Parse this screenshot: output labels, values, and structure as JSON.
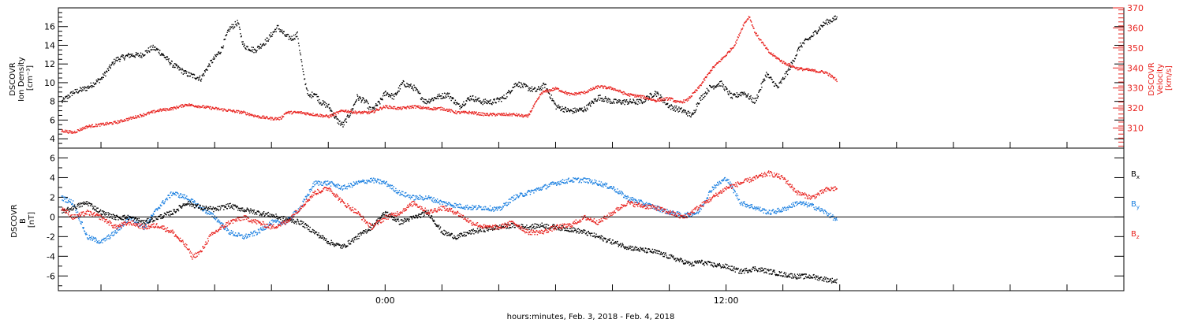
{
  "colors": {
    "black": "#000000",
    "red": "#e8221e",
    "blue": "#1a7fe0"
  },
  "chart_data": [
    {
      "type": "scatter",
      "panel": "top",
      "xlabel": "hours:minutes, Feb. 3, 2018 - Feb. 4, 2018",
      "x_range_hours_rel_feb4_0000": [
        -11.5,
        26.0
      ],
      "x_tick_labels": [
        "0:00",
        "12:00"
      ],
      "left_axis": {
        "label_lines": [
          "DSCOVR",
          "Ion Density",
          "[cm⁻³]"
        ],
        "ylim": [
          3,
          18
        ],
        "ticks": [
          4,
          6,
          8,
          10,
          12,
          14,
          16
        ],
        "tick_labels": [
          "4",
          "6",
          "8",
          "10",
          "12",
          "14",
          "16"
        ]
      },
      "right_axis": {
        "label_lines": [
          "DSCOVR",
          "Velocity",
          "[km/s]"
        ],
        "ylim": [
          300,
          370
        ],
        "ticks": [
          310,
          320,
          330,
          340,
          350,
          360,
          370
        ],
        "tick_labels": [
          "310",
          "320",
          "330",
          "340",
          "350",
          "360",
          "370"
        ],
        "color": "#e8221e"
      },
      "series": [
        {
          "color": "black",
          "axis": "left",
          "x": [
            -11.4,
            -11.0,
            -10.5,
            -10.0,
            -9.5,
            -9.0,
            -8.6,
            -8.2,
            -8.0,
            -7.5,
            -7.0,
            -6.5,
            -6.2,
            -5.8,
            -5.5,
            -5.2,
            -5.0,
            -4.6,
            -4.2,
            -3.8,
            -3.5,
            -3.3,
            -3.1,
            -2.9,
            -2.7,
            -2.5,
            -2.3,
            -2.0,
            -1.7,
            -1.5,
            -1.2,
            -1.0,
            -0.7,
            -0.5,
            -0.2,
            0.0,
            0.3,
            0.6,
            1.0,
            1.4,
            1.8,
            2.2,
            2.6,
            3.0,
            3.4,
            3.8,
            4.2,
            4.6,
            5.0,
            5.3,
            5.6,
            6.0,
            6.5,
            7.0,
            7.5,
            8.0,
            8.5,
            9.0,
            9.5,
            10.0,
            10.5,
            10.8,
            11.0,
            11.4,
            11.8,
            12.2,
            12.6,
            13.0,
            13.4,
            13.8,
            14.2,
            14.6,
            15.0,
            15.3,
            15.5,
            15.9
          ],
          "y": [
            8.0,
            9.0,
            9.5,
            10.5,
            12.5,
            13.0,
            13.0,
            13.8,
            13.5,
            12.0,
            11.0,
            10.5,
            12.0,
            13.5,
            15.8,
            16.5,
            14.0,
            13.5,
            14.5,
            16.0,
            15.0,
            14.8,
            15.2,
            11.0,
            8.5,
            9.0,
            8.0,
            7.5,
            6.0,
            5.5,
            7.0,
            8.5,
            8.0,
            7.0,
            8.0,
            9.0,
            8.5,
            10.0,
            9.5,
            8.0,
            8.5,
            8.8,
            7.5,
            8.5,
            8.0,
            8.0,
            8.5,
            10.0,
            9.5,
            9.2,
            9.8,
            7.5,
            7.0,
            7.2,
            8.5,
            8.0,
            8.0,
            8.0,
            9.0,
            7.5,
            7.0,
            6.5,
            8.0,
            9.5,
            10.0,
            8.5,
            9.0,
            8.0,
            11.0,
            9.5,
            11.5,
            14.0,
            15.0,
            16.0,
            16.5,
            17.0
          ]
        },
        {
          "color": "red",
          "axis": "right",
          "x": [
            -11.4,
            -11.0,
            -10.5,
            -10.0,
            -9.5,
            -9.0,
            -8.5,
            -8.0,
            -7.5,
            -7.0,
            -6.5,
            -6.0,
            -5.5,
            -5.0,
            -4.5,
            -4.0,
            -3.7,
            -3.5,
            -3.0,
            -2.5,
            -2.0,
            -1.5,
            -1.0,
            -0.5,
            -0.2,
            0.0,
            0.5,
            1.0,
            1.5,
            2.0,
            2.5,
            3.0,
            3.5,
            4.0,
            4.5,
            5.0,
            5.5,
            6.0,
            6.5,
            7.0,
            7.5,
            8.0,
            8.5,
            9.0,
            9.5,
            10.0,
            10.3,
            10.6,
            11.0,
            11.5,
            12.0,
            12.3,
            12.6,
            12.8,
            13.0,
            13.3,
            13.5,
            14.0,
            14.5,
            15.0,
            15.5,
            15.9
          ],
          "y": [
            309,
            308,
            311,
            312,
            313,
            315,
            317,
            319,
            320,
            322,
            321,
            320,
            319,
            318,
            316,
            315,
            315,
            318,
            318,
            317,
            316,
            319,
            318,
            318,
            320,
            321,
            320,
            321,
            320,
            320,
            318,
            318,
            317,
            317,
            317,
            316,
            328,
            330,
            327,
            328,
            331,
            330,
            327,
            326,
            324,
            325,
            323,
            324,
            330,
            340,
            347,
            352,
            362,
            366,
            358,
            352,
            348,
            343,
            340,
            339,
            338,
            334
          ]
        }
      ]
    },
    {
      "type": "scatter",
      "panel": "bottom",
      "xlabel": "hours:minutes, Feb. 3, 2018 - Feb. 4, 2018",
      "x_tick_labels": [
        "0:00",
        "12:00"
      ],
      "left_axis": {
        "label_lines": [
          "DSCOVR",
          "B",
          "[nT]"
        ],
        "ylim": [
          -7.5,
          7
        ],
        "ticks": [
          -6,
          -4,
          -2,
          0,
          2,
          4,
          6
        ],
        "tick_labels": [
          "-6",
          "-4",
          "-2",
          "0",
          "2",
          "4",
          "6"
        ]
      },
      "zero_line": true,
      "legend_placement": "right",
      "series": [
        {
          "name": "Bx",
          "name_main": "B",
          "name_sub": "x",
          "color": "black",
          "x": [
            -11.4,
            -11.0,
            -10.5,
            -10.0,
            -9.5,
            -9.0,
            -8.5,
            -8.0,
            -7.5,
            -7.0,
            -6.5,
            -6.0,
            -5.5,
            -5.0,
            -4.5,
            -4.0,
            -3.5,
            -3.0,
            -2.5,
            -2.0,
            -1.5,
            -1.0,
            -0.5,
            0.0,
            0.5,
            1.0,
            1.5,
            2.0,
            2.5,
            3.0,
            3.5,
            4.0,
            4.5,
            5.0,
            5.5,
            6.0,
            6.5,
            7.0,
            7.5,
            8.0,
            8.5,
            9.0,
            9.5,
            10.0,
            10.5,
            10.8,
            11.0,
            11.5,
            12.0,
            12.5,
            13.0,
            13.5,
            14.0,
            14.5,
            15.0,
            15.5,
            15.9
          ],
          "y": [
            0.5,
            1.0,
            1.5,
            0.5,
            0.0,
            0.0,
            -0.5,
            0.0,
            0.5,
            1.5,
            1.0,
            0.8,
            1.2,
            0.8,
            0.5,
            0.2,
            -0.2,
            -0.5,
            -1.5,
            -2.5,
            -3.0,
            -2.0,
            -1.0,
            0.5,
            -0.5,
            0.0,
            0.5,
            -1.5,
            -2.0,
            -1.5,
            -1.2,
            -1.0,
            -0.8,
            -1.0,
            -0.8,
            -1.0,
            -1.2,
            -1.5,
            -2.0,
            -2.5,
            -3.0,
            -3.3,
            -3.5,
            -4.0,
            -4.5,
            -4.8,
            -4.5,
            -4.8,
            -5.0,
            -5.5,
            -5.2,
            -5.5,
            -5.8,
            -6.0,
            -6.0,
            -6.3,
            -6.5
          ]
        },
        {
          "name": "By",
          "name_main": "B",
          "name_sub": "y",
          "color": "blue",
          "x": [
            -11.4,
            -11.0,
            -10.5,
            -10.0,
            -9.5,
            -9.0,
            -8.5,
            -8.0,
            -7.5,
            -7.0,
            -6.5,
            -6.0,
            -5.5,
            -5.0,
            -4.5,
            -4.0,
            -3.5,
            -3.0,
            -2.5,
            -2.0,
            -1.5,
            -1.0,
            -0.5,
            0.0,
            0.5,
            1.0,
            1.5,
            2.0,
            2.5,
            3.0,
            3.5,
            4.0,
            4.5,
            5.0,
            5.5,
            6.0,
            6.5,
            7.0,
            7.5,
            8.0,
            8.5,
            9.0,
            9.5,
            10.0,
            10.5,
            11.0,
            11.5,
            12.0,
            12.5,
            13.0,
            13.5,
            14.0,
            14.5,
            15.0,
            15.5,
            15.9
          ],
          "y": [
            2.0,
            1.5,
            -2.0,
            -2.5,
            -1.5,
            0.0,
            -1.0,
            1.0,
            2.5,
            2.0,
            1.0,
            0.0,
            -1.5,
            -2.0,
            -1.5,
            -0.5,
            -0.5,
            1.0,
            3.5,
            3.5,
            3.0,
            3.5,
            3.8,
            3.5,
            2.5,
            2.0,
            2.0,
            1.5,
            1.2,
            1.0,
            1.0,
            0.8,
            2.0,
            2.5,
            3.0,
            3.5,
            3.8,
            3.8,
            3.5,
            3.0,
            2.0,
            1.5,
            1.0,
            0.5,
            0.2,
            0.5,
            3.0,
            4.0,
            1.5,
            1.0,
            0.5,
            0.8,
            1.5,
            1.2,
            0.5,
            -0.3
          ]
        },
        {
          "name": "Bz",
          "name_main": "B",
          "name_sub": "z",
          "color": "red",
          "x": [
            -11.4,
            -11.0,
            -10.5,
            -10.0,
            -9.5,
            -9.0,
            -8.5,
            -8.0,
            -7.5,
            -7.0,
            -6.8,
            -6.5,
            -6.2,
            -6.0,
            -5.5,
            -5.0,
            -4.5,
            -4.0,
            -3.5,
            -3.0,
            -2.5,
            -2.0,
            -1.5,
            -1.0,
            -0.5,
            0.0,
            0.5,
            1.0,
            1.5,
            2.0,
            2.5,
            3.0,
            3.5,
            4.0,
            4.5,
            5.0,
            5.5,
            6.0,
            6.5,
            7.0,
            7.5,
            8.0,
            8.5,
            9.0,
            9.5,
            10.0,
            10.5,
            11.0,
            11.5,
            12.0,
            12.5,
            13.0,
            13.5,
            14.0,
            14.5,
            15.0,
            15.5,
            15.9
          ],
          "y": [
            1.0,
            0.0,
            0.5,
            0.0,
            -1.0,
            -0.5,
            -1.0,
            -0.8,
            -1.5,
            -3.0,
            -4.0,
            -3.5,
            -2.0,
            -1.5,
            -0.5,
            0.0,
            -0.5,
            -1.0,
            -0.5,
            1.0,
            2.5,
            3.0,
            1.5,
            0.5,
            -1.0,
            0.0,
            0.5,
            1.5,
            0.5,
            1.0,
            0.5,
            -0.5,
            -1.0,
            -1.0,
            -0.5,
            -1.5,
            -1.5,
            -1.0,
            -0.8,
            0.0,
            -0.5,
            0.5,
            1.5,
            1.2,
            1.0,
            0.5,
            0.0,
            1.0,
            2.0,
            3.0,
            3.5,
            4.0,
            4.5,
            4.0,
            2.5,
            2.0,
            2.8,
            3.0
          ]
        }
      ]
    }
  ]
}
